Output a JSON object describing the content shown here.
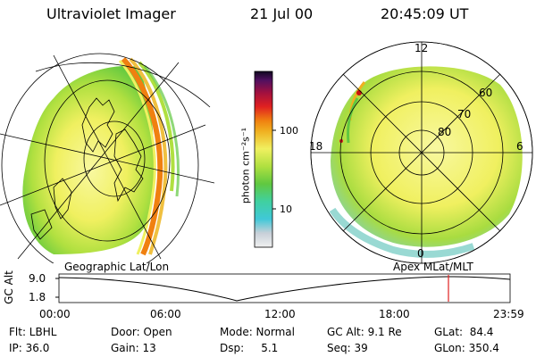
{
  "header": {
    "instrument": "Ultraviolet Imager",
    "date": "21 Jul 00",
    "time": "20:45:09 UT"
  },
  "left_panel": {
    "caption": "Geographic Lat/Lon"
  },
  "right_panel": {
    "caption": "Apex MLat/MLT",
    "mlt_labels": {
      "top": "12",
      "left": "18",
      "right": "6",
      "bottom": "0"
    },
    "lat_labels": [
      "60",
      "70",
      "80"
    ]
  },
  "colorbar": {
    "unit_label": "photon cm⁻²s⁻¹",
    "ticks": [
      "100",
      "10"
    ]
  },
  "timeline": {
    "y_axis_label": "GC Alt",
    "y_ticks": [
      "9.0",
      "1.8"
    ],
    "x_ticks": [
      "00:00",
      "06:00",
      "12:00",
      "18:00",
      "23:59"
    ],
    "marker_time": "20:45"
  },
  "status": {
    "flt": "Flt: LBHL",
    "ip": "IP: 36.0",
    "door": "Door: Open",
    "gain": "Gain: 13",
    "mode": "Mode: Normal",
    "dsp": "Dsp:     5.1",
    "gc_alt": "GC Alt: 9.1 Re",
    "seq": "Seq: 39",
    "glat": "GLat:  84.4",
    "glon": "GLon: 350.4"
  },
  "colors": {
    "low": "#d8d8d8",
    "cyan": "#40c8d8",
    "green": "#60c840",
    "yellow": "#f0f060",
    "orange": "#f09020",
    "red": "#c81010",
    "marker": "#e02020"
  }
}
